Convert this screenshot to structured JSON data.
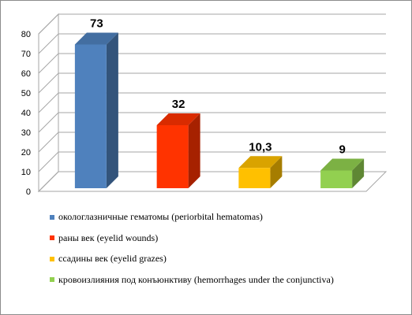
{
  "chart_data": {
    "type": "bar",
    "categories": [
      "окологлазничные гематомы (periorbital hematomas)",
      "раны век (eyelid wounds)",
      "ссадины век (eyelid grazes)",
      "кровоизлияния под конъюнктиву (hemorrhages under the conjunctiva)"
    ],
    "values": [
      73,
      32,
      10.3,
      9
    ],
    "value_labels": [
      "73",
      "32",
      "10,3",
      "9"
    ],
    "colors": [
      "#4f81bd",
      "#ff3300",
      "#ffc000",
      "#92d050"
    ],
    "ylim": [
      0,
      80
    ],
    "yticks": [
      "0",
      "10",
      "20",
      "30",
      "40",
      "50",
      "60",
      "70",
      "80"
    ],
    "grid": true,
    "legend_position": "bottom",
    "style": "3d-column"
  }
}
